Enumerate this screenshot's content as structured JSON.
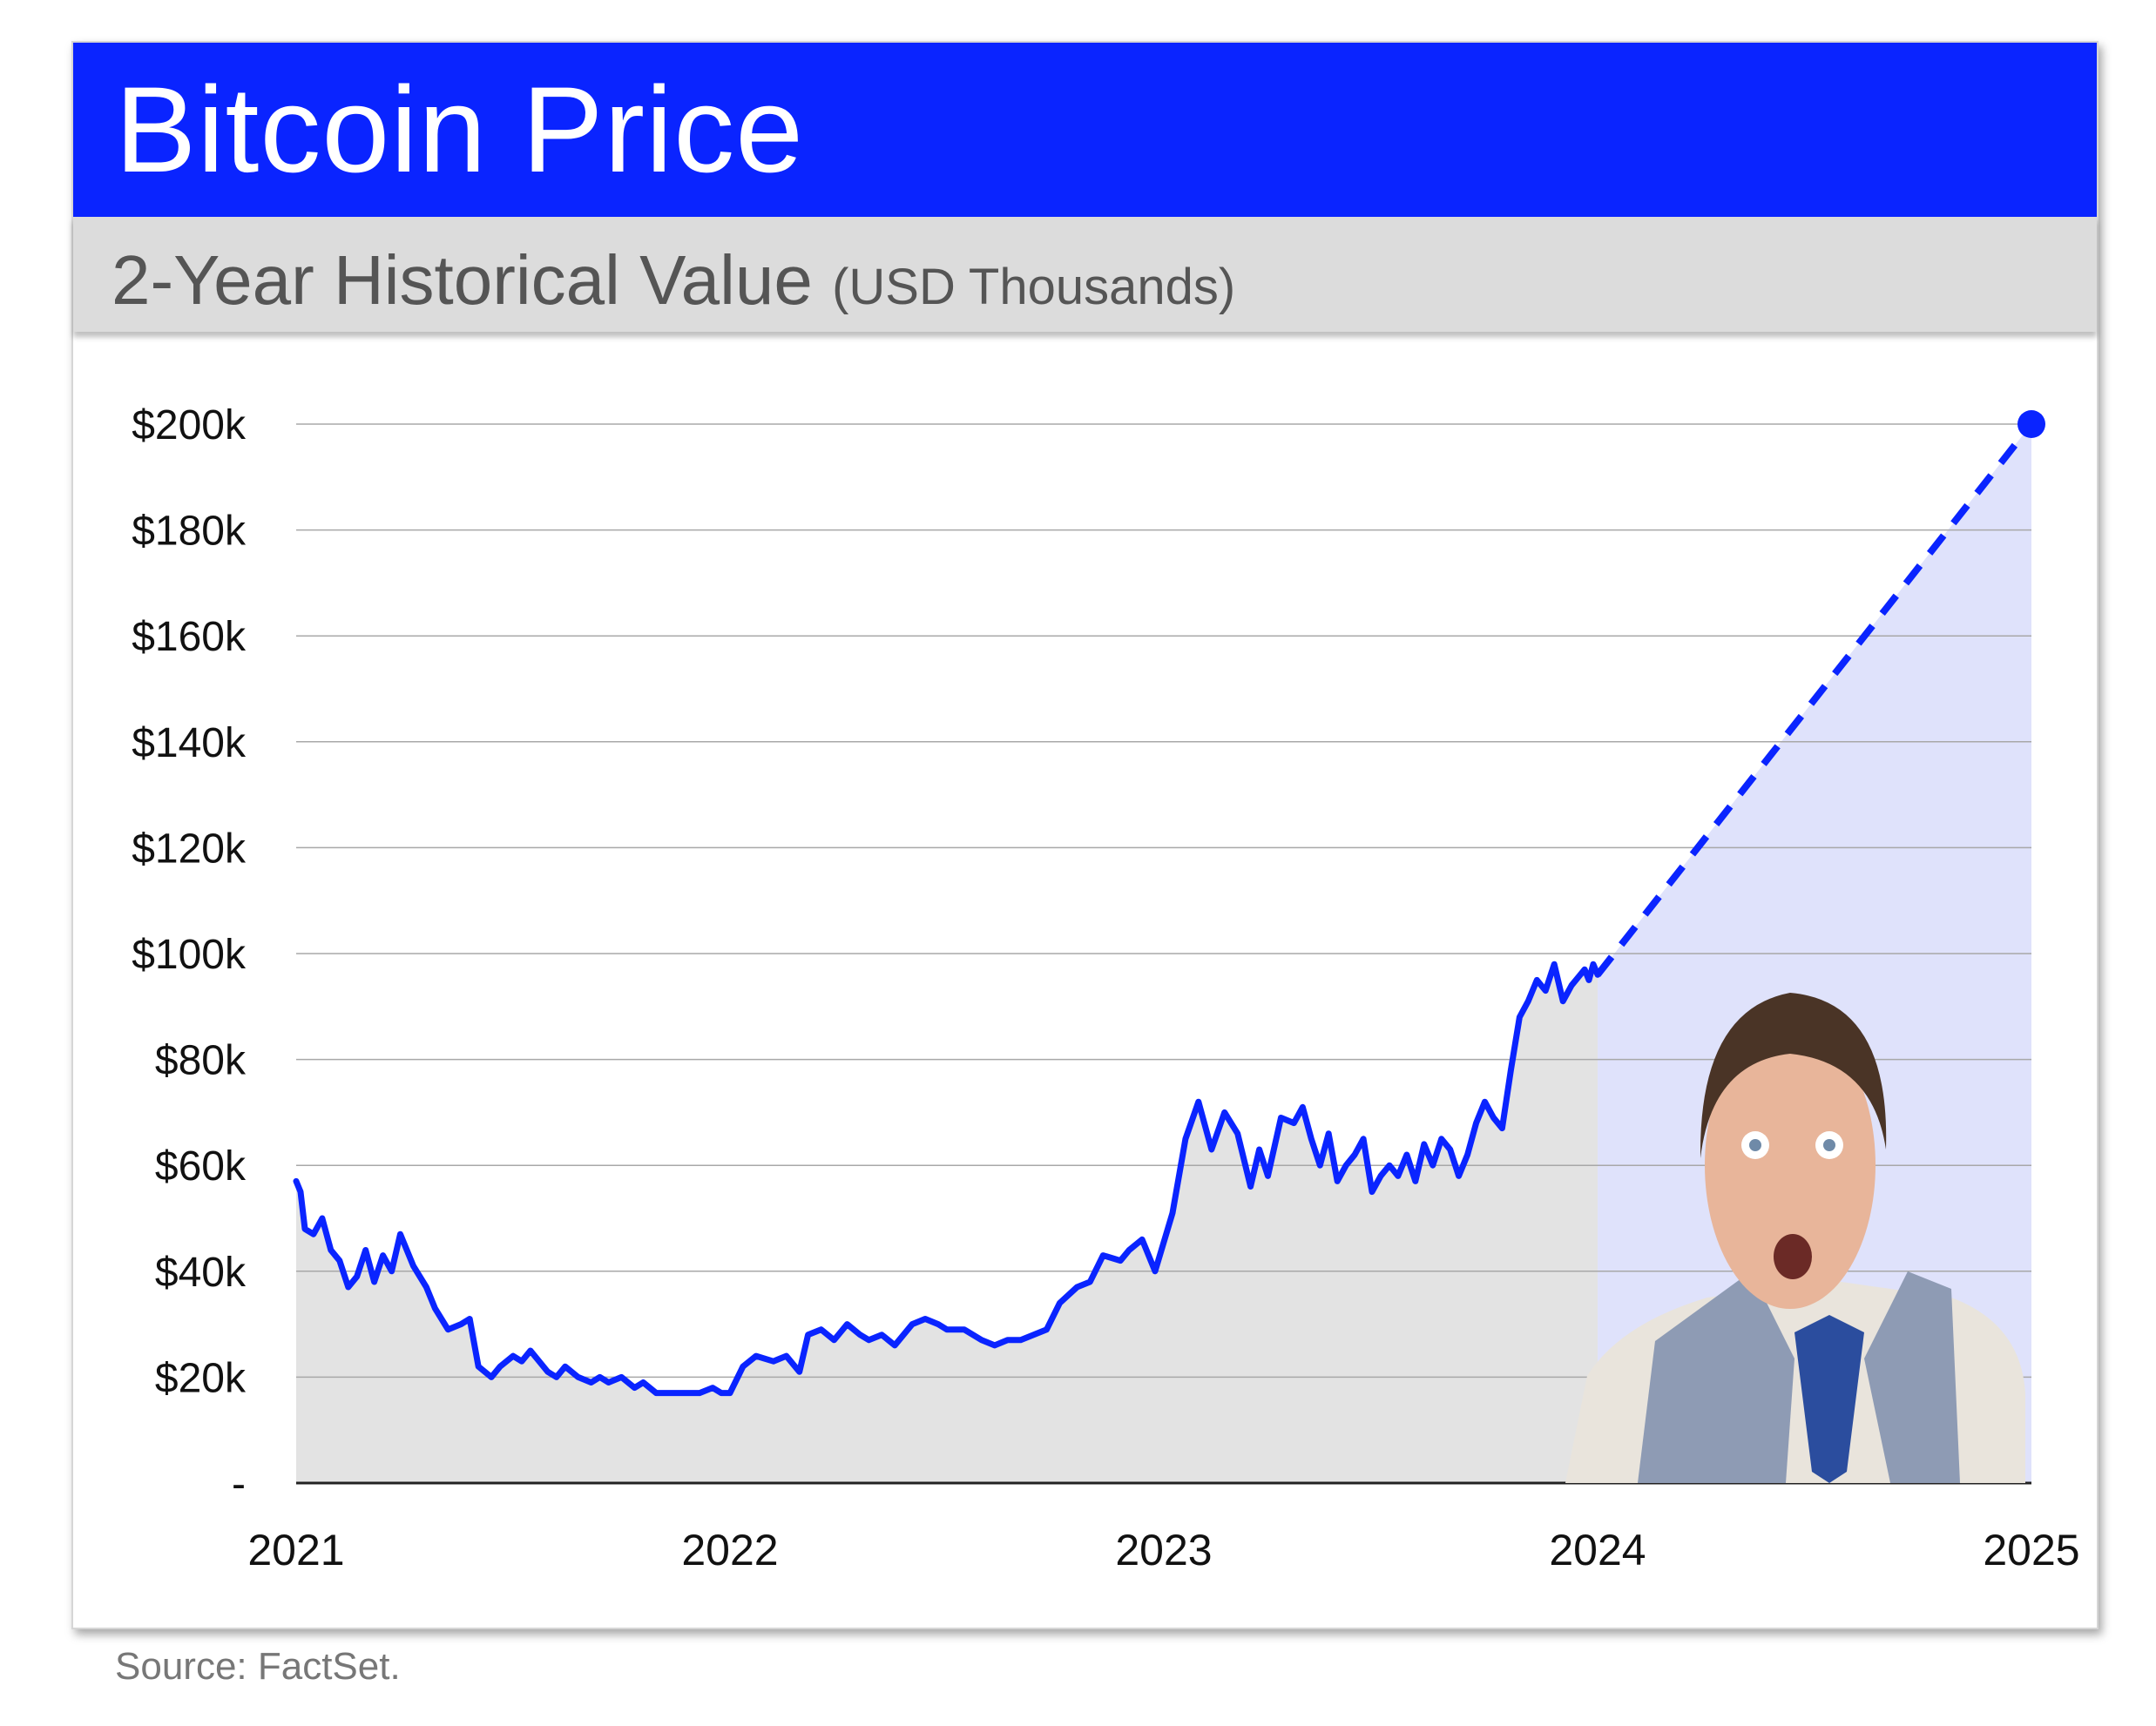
{
  "title": "Bitcoin Price",
  "subtitle": "2-Year Historical Value",
  "subtitle_unit": "(USD Thousands)",
  "source": "Source: FactSet.",
  "colors": {
    "title_bar": "#0a24ff",
    "line": "#0a24ff",
    "historical_fill": "#e3e3e3",
    "projection_fill": "#dfe2fb",
    "subtitle_bar": "#dcdcdc"
  },
  "presenter_photo": {
    "icon": "presenter-photo"
  },
  "chart_data": {
    "type": "line",
    "title": "Bitcoin Price",
    "subtitle": "2-Year Historical Value (USD Thousands)",
    "xlabel": "",
    "ylabel": "",
    "x_ticks": [
      {
        "value": 2021,
        "label": "2021"
      },
      {
        "value": 2022,
        "label": "2022"
      },
      {
        "value": 2023,
        "label": "2023"
      },
      {
        "value": 2024,
        "label": "2024"
      },
      {
        "value": 2025,
        "label": "2025"
      }
    ],
    "y_ticks": [
      {
        "value": 0,
        "label": "-"
      },
      {
        "value": 20,
        "label": "$20k"
      },
      {
        "value": 40,
        "label": "$40k"
      },
      {
        "value": 60,
        "label": "$60k"
      },
      {
        "value": 80,
        "label": "$80k"
      },
      {
        "value": 100,
        "label": "$100k"
      },
      {
        "value": 120,
        "label": "$120k"
      },
      {
        "value": 140,
        "label": "$140k"
      },
      {
        "value": 160,
        "label": "$160k"
      },
      {
        "value": 180,
        "label": "$180k"
      },
      {
        "value": 200,
        "label": "$200k"
      }
    ],
    "xlim": [
      2021,
      2025
    ],
    "ylim": [
      0,
      200
    ],
    "grid": true,
    "series": [
      {
        "style": "solid",
        "x": [
          2021.0,
          2021.01,
          2021.02,
          2021.04,
          2021.06,
          2021.08,
          2021.1,
          2021.12,
          2021.14,
          2021.16,
          2021.18,
          2021.2,
          2021.22,
          2021.24,
          2021.27,
          2021.3,
          2021.32,
          2021.35,
          2021.38,
          2021.4,
          2021.42,
          2021.45,
          2021.47,
          2021.5,
          2021.52,
          2021.54,
          2021.56,
          2021.58,
          2021.6,
          2021.62,
          2021.65,
          2021.68,
          2021.7,
          2021.72,
          2021.75,
          2021.78,
          2021.8,
          2021.83,
          2021.86,
          2021.9,
          2021.93,
          2021.96,
          2021.98,
          2022.0,
          2022.03,
          2022.06,
          2022.1,
          2022.13,
          2022.16,
          2022.18,
          2022.21,
          2022.24,
          2022.27,
          2022.3,
          2022.32,
          2022.35,
          2022.38,
          2022.42,
          2022.45,
          2022.48,
          2022.5,
          2022.54,
          2022.58,
          2022.61,
          2022.64,
          2022.67,
          2022.7,
          2022.73,
          2022.76,
          2022.8,
          2022.83,
          2022.86,
          2022.9,
          2022.92,
          2022.95,
          2022.98,
          2023.02,
          2023.05,
          2023.08,
          2023.11,
          2023.14,
          2023.17,
          2023.2,
          2023.22,
          2023.24,
          2023.27,
          2023.3,
          2023.32,
          2023.34,
          2023.36,
          2023.38,
          2023.4,
          2023.42,
          2023.44,
          2023.46,
          2023.48,
          2023.5,
          2023.52,
          2023.54,
          2023.56,
          2023.58,
          2023.6,
          2023.62,
          2023.64,
          2023.66,
          2023.68,
          2023.7,
          2023.72,
          2023.74,
          2023.76,
          2023.78,
          2023.8,
          2023.82,
          2023.84,
          2023.86,
          2023.88,
          2023.9,
          2023.92,
          2023.94,
          2023.96,
          2023.97,
          2023.98,
          2023.99,
          2024.0
        ],
        "y": [
          57,
          55,
          48,
          47,
          50,
          44,
          42,
          37,
          39,
          44,
          38,
          43,
          40,
          47,
          41,
          37,
          33,
          29,
          30,
          31,
          22,
          20,
          22,
          24,
          23,
          25,
          23,
          21,
          20,
          22,
          20,
          19,
          20,
          19,
          20,
          18,
          19,
          17,
          17,
          17,
          17,
          18,
          17,
          17,
          22,
          24,
          23,
          24,
          21,
          28,
          29,
          27,
          30,
          28,
          27,
          28,
          26,
          30,
          31,
          30,
          29,
          29,
          27,
          26,
          27,
          27,
          28,
          29,
          34,
          37,
          38,
          43,
          42,
          44,
          46,
          40,
          51,
          65,
          72,
          63,
          70,
          66,
          56,
          63,
          58,
          69,
          68,
          71,
          65,
          60,
          66,
          57,
          60,
          62,
          65,
          55,
          58,
          60,
          58,
          62,
          57,
          64,
          60,
          65,
          63,
          58,
          62,
          68,
          72,
          69,
          67,
          78,
          88,
          91,
          95,
          93,
          98,
          91,
          94,
          96,
          97,
          95,
          98,
          96
        ]
      },
      {
        "style": "dashed",
        "x": [
          2024.0,
          2025.0
        ],
        "y": [
          96,
          200
        ]
      }
    ],
    "annotations": [
      {
        "type": "marker",
        "x": 2025.0,
        "y": 200
      }
    ]
  }
}
